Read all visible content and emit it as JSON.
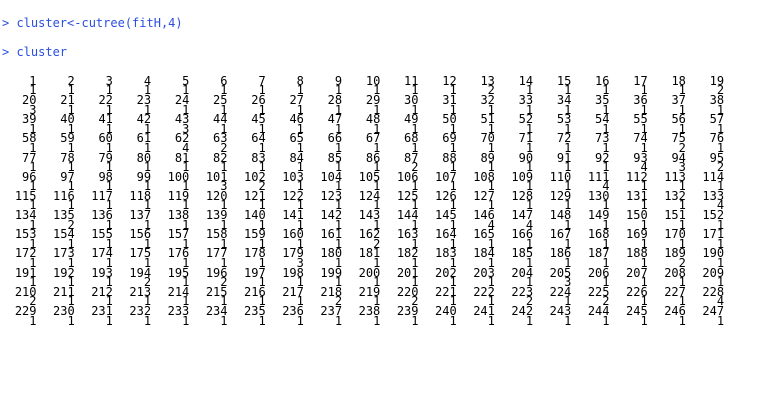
{
  "colors": {
    "prompt": "#2a4fe0",
    "command": "#2a4fe0",
    "output": "#000000",
    "background": "#ffffff"
  },
  "commands": [
    {
      "prompt": "> ",
      "text": "cluster<-cutree(fitH,4)"
    },
    {
      "prompt": "> ",
      "text": "cluster"
    }
  ],
  "output_rows": [
    {
      "ids": [
        "1",
        "2",
        "3",
        "4",
        "5",
        "6",
        "7",
        "8",
        "9",
        "10",
        "11",
        "12",
        "13",
        "14",
        "15",
        "16",
        "17",
        "18",
        "19"
      ],
      "values": [
        "1",
        "1",
        "1",
        "1",
        "1",
        "1",
        "1",
        "1",
        "1",
        "1",
        "1",
        "1",
        "2",
        "1",
        "1",
        "1",
        "1",
        "1",
        "2"
      ]
    },
    {
      "ids": [
        "20",
        "21",
        "22",
        "23",
        "24",
        "25",
        "26",
        "27",
        "28",
        "29",
        "30",
        "31",
        "32",
        "33",
        "34",
        "35",
        "36",
        "37",
        "38"
      ],
      "values": [
        "3",
        "1",
        "1",
        "1",
        "1",
        "1",
        "1",
        "1",
        "1",
        "1",
        "1",
        "1",
        "1",
        "1",
        "1",
        "1",
        "1",
        "1",
        "1"
      ]
    },
    {
      "ids": [
        "39",
        "40",
        "41",
        "42",
        "43",
        "44",
        "45",
        "46",
        "47",
        "48",
        "49",
        "50",
        "51",
        "52",
        "53",
        "54",
        "55",
        "56",
        "57"
      ],
      "values": [
        "1",
        "1",
        "1",
        "1",
        "3",
        "1",
        "1",
        "1",
        "1",
        "1",
        "1",
        "1",
        "1",
        "1",
        "1",
        "1",
        "1",
        "1",
        "1"
      ]
    },
    {
      "ids": [
        "58",
        "59",
        "60",
        "61",
        "62",
        "63",
        "64",
        "65",
        "66",
        "67",
        "68",
        "69",
        "70",
        "71",
        "72",
        "73",
        "74",
        "75",
        "76"
      ],
      "values": [
        "1",
        "1",
        "1",
        "1",
        "4",
        "2",
        "1",
        "1",
        "1",
        "1",
        "1",
        "1",
        "1",
        "1",
        "1",
        "1",
        "1",
        "2",
        "1"
      ]
    },
    {
      "ids": [
        "77",
        "78",
        "79",
        "80",
        "81",
        "82",
        "83",
        "84",
        "85",
        "86",
        "87",
        "88",
        "89",
        "90",
        "91",
        "92",
        "93",
        "94",
        "95"
      ],
      "values": [
        "1",
        "1",
        "1",
        "1",
        "1",
        "1",
        "1",
        "1",
        "1",
        "1",
        "2",
        "1",
        "1",
        "1",
        "1",
        "1",
        "4",
        "3",
        "2"
      ]
    },
    {
      "ids": [
        "96",
        "97",
        "98",
        "99",
        "100",
        "101",
        "102",
        "103",
        "104",
        "105",
        "106",
        "107",
        "108",
        "109",
        "110",
        "111",
        "112",
        "113",
        "114"
      ],
      "values": [
        "1",
        "1",
        "1",
        "1",
        "1",
        "3",
        "2",
        "1",
        "1",
        "1",
        "1",
        "1",
        "1",
        "1",
        "1",
        "4",
        "1",
        "1",
        "1"
      ]
    },
    {
      "ids": [
        "115",
        "116",
        "117",
        "118",
        "119",
        "120",
        "121",
        "122",
        "123",
        "124",
        "125",
        "126",
        "127",
        "128",
        "129",
        "130",
        "131",
        "132",
        "133"
      ],
      "values": [
        "1",
        "1",
        "1",
        "1",
        "1",
        "1",
        "1",
        "1",
        "1",
        "1",
        "1",
        "1",
        "1",
        "1",
        "1",
        "1",
        "1",
        "1",
        "4"
      ]
    },
    {
      "ids": [
        "134",
        "135",
        "136",
        "137",
        "138",
        "139",
        "140",
        "141",
        "142",
        "143",
        "144",
        "145",
        "146",
        "147",
        "148",
        "149",
        "150",
        "151",
        "152"
      ],
      "values": [
        "1",
        "2",
        "1",
        "1",
        "1",
        "1",
        "1",
        "1",
        "1",
        "1",
        "1",
        "1",
        "4",
        "4",
        "1",
        "1",
        "1",
        "1",
        "1"
      ]
    },
    {
      "ids": [
        "153",
        "154",
        "155",
        "156",
        "157",
        "158",
        "159",
        "160",
        "161",
        "162",
        "163",
        "164",
        "165",
        "166",
        "167",
        "168",
        "169",
        "170",
        "171"
      ],
      "values": [
        "1",
        "1",
        "1",
        "1",
        "1",
        "1",
        "1",
        "1",
        "1",
        "2",
        "1",
        "1",
        "1",
        "1",
        "1",
        "1",
        "1",
        "1",
        "1"
      ]
    },
    {
      "ids": [
        "172",
        "173",
        "174",
        "175",
        "176",
        "177",
        "178",
        "179",
        "180",
        "181",
        "182",
        "183",
        "184",
        "185",
        "186",
        "187",
        "188",
        "189",
        "190"
      ],
      "values": [
        "1",
        "1",
        "1",
        "1",
        "1",
        "1",
        "1",
        "3",
        "1",
        "1",
        "1",
        "1",
        "1",
        "1",
        "1",
        "1",
        "1",
        "2",
        "1"
      ]
    },
    {
      "ids": [
        "191",
        "192",
        "193",
        "194",
        "195",
        "196",
        "197",
        "198",
        "199",
        "200",
        "201",
        "202",
        "203",
        "204",
        "205",
        "206",
        "207",
        "208",
        "209"
      ],
      "values": [
        "1",
        "1",
        "1",
        "2",
        "1",
        "2",
        "1",
        "1",
        "1",
        "1",
        "1",
        "1",
        "1",
        "1",
        "3",
        "1",
        "1",
        "1",
        "1"
      ]
    },
    {
      "ids": [
        "210",
        "211",
        "212",
        "213",
        "214",
        "215",
        "216",
        "217",
        "218",
        "219",
        "220",
        "221",
        "222",
        "223",
        "224",
        "225",
        "226",
        "227",
        "228"
      ],
      "values": [
        "2",
        "1",
        "1",
        "1",
        "1",
        "1",
        "1",
        "1",
        "2",
        "1",
        "2",
        "1",
        "1",
        "2",
        "1",
        "2",
        "1",
        "1",
        "4"
      ]
    },
    {
      "ids": [
        "229",
        "230",
        "231",
        "232",
        "233",
        "234",
        "235",
        "236",
        "237",
        "238",
        "239",
        "240",
        "241",
        "242",
        "243",
        "244",
        "245",
        "246",
        "247"
      ],
      "values": [
        "1",
        "1",
        "1",
        "1",
        "1",
        "1",
        "1",
        "1",
        "1",
        "1",
        "1",
        "1",
        "1",
        "1",
        "1",
        "1",
        "1",
        "1",
        "1"
      ]
    }
  ]
}
